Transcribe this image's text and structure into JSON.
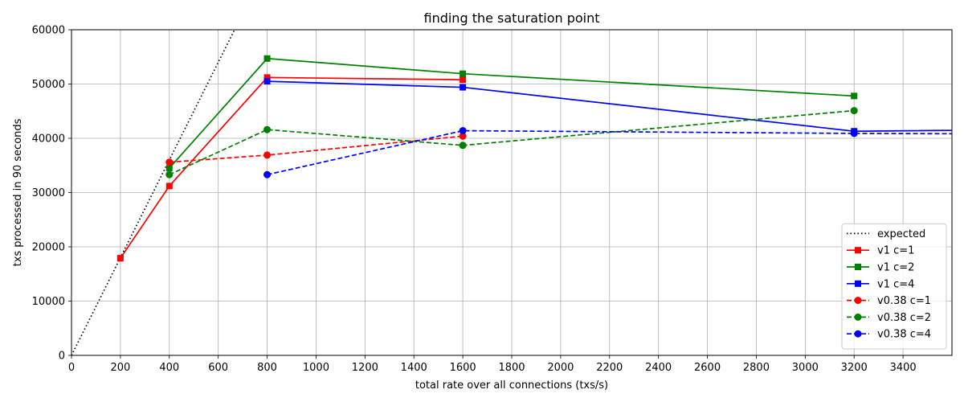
{
  "chart_data": {
    "type": "line",
    "title": "finding the saturation point",
    "xlabel": "total rate over all connections (txs/s)",
    "ylabel": "txs processed in 90 seconds",
    "xlim": [
      0,
      3600
    ],
    "ylim": [
      0,
      60000
    ],
    "xticks": [
      "0",
      "200",
      "400",
      "600",
      "800",
      "1000",
      "1200",
      "1400",
      "1600",
      "1800",
      "2000",
      "2200",
      "2400",
      "2600",
      "2800",
      "3000",
      "3200",
      "3400"
    ],
    "yticks": [
      "0",
      "10000",
      "20000",
      "30000",
      "40000",
      "50000",
      "60000"
    ],
    "grid": true,
    "legend_position": "lower-right",
    "series": [
      {
        "name": "expected",
        "color": "#000000",
        "dash": "dotted",
        "marker": "none",
        "points": [
          [
            0,
            0
          ],
          [
            200,
            18000
          ],
          [
            400,
            36000
          ],
          [
            680,
            61200
          ]
        ]
      },
      {
        "name": "v1 c=1",
        "color": "#ff0000",
        "dash": "solid",
        "marker": "square",
        "points": [
          [
            200,
            17900
          ],
          [
            400,
            31200
          ],
          [
            800,
            51200
          ],
          [
            1600,
            50800
          ]
        ]
      },
      {
        "name": "v1 c=2",
        "color": "#008000",
        "dash": "solid",
        "marker": "square",
        "points": [
          [
            400,
            34500
          ],
          [
            800,
            54700
          ],
          [
            1600,
            51900
          ],
          [
            3200,
            47800
          ]
        ]
      },
      {
        "name": "v1 c=4",
        "color": "#0000ff",
        "dash": "solid",
        "marker": "square",
        "points": [
          [
            800,
            50500
          ],
          [
            1600,
            49400
          ],
          [
            3200,
            41300
          ],
          [
            6400,
            42600
          ]
        ]
      },
      {
        "name": "v0.38 c=1",
        "color": "#ff0000",
        "dash": "dashed",
        "marker": "circle",
        "points": [
          [
            400,
            35600
          ],
          [
            800,
            36900
          ],
          [
            1600,
            40400
          ]
        ]
      },
      {
        "name": "v0.38 c=2",
        "color": "#008000",
        "dash": "dashed",
        "marker": "circle",
        "points": [
          [
            400,
            33300
          ],
          [
            800,
            41600
          ],
          [
            1600,
            38700
          ],
          [
            3200,
            45100
          ]
        ]
      },
      {
        "name": "v0.38 c=4",
        "color": "#0000ff",
        "dash": "dashed",
        "marker": "circle",
        "points": [
          [
            800,
            33300
          ],
          [
            1600,
            41400
          ],
          [
            3200,
            40900
          ],
          [
            6400,
            40400
          ]
        ]
      }
    ]
  }
}
